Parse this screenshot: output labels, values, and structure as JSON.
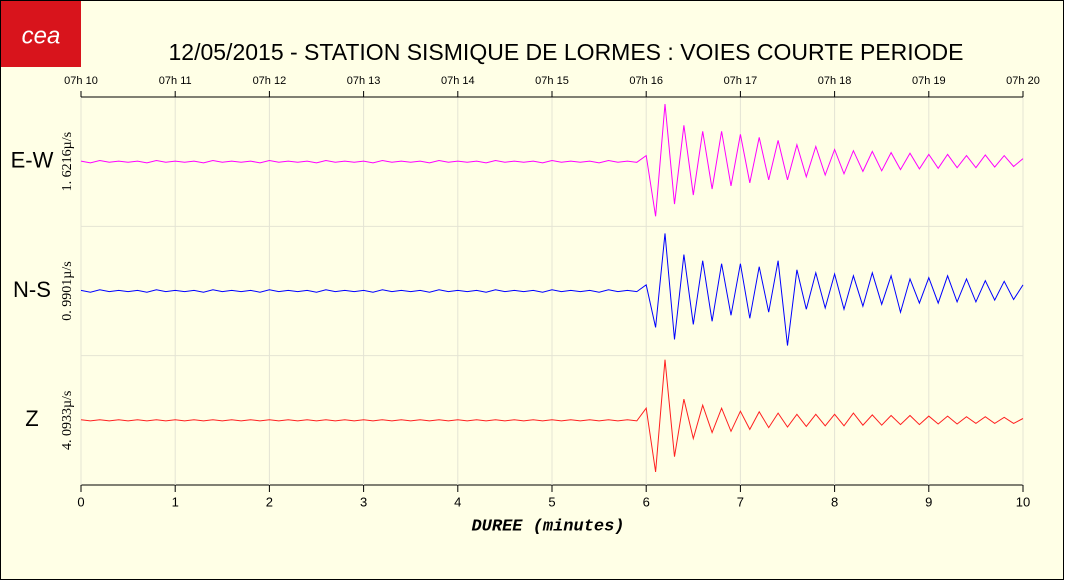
{
  "chart_data": {
    "type": "seismogram",
    "title": "12/05/2015  -  STATION SISMIQUE DE LORMES : VOIES COURTE PERIODE",
    "logo": "cea",
    "x_label": "DUREE (minutes)",
    "xlim": [
      0,
      10
    ],
    "xticks": [
      0,
      1,
      2,
      3,
      4,
      5,
      6,
      7,
      8,
      9,
      10
    ],
    "top_ticks": [
      {
        "value": 0,
        "label": "07h 10"
      },
      {
        "value": 1,
        "label": "07h 11"
      },
      {
        "value": 2,
        "label": "07h 12"
      },
      {
        "value": 3,
        "label": "07h 13"
      },
      {
        "value": 4,
        "label": "07h 14"
      },
      {
        "value": 5,
        "label": "07h 15"
      },
      {
        "value": 6,
        "label": "07h 16"
      },
      {
        "value": 7,
        "label": "07h 17"
      },
      {
        "value": 8,
        "label": "07h 18"
      },
      {
        "value": 9,
        "label": "07h 19"
      },
      {
        "value": 10,
        "label": "07h 20"
      }
    ],
    "grid": true,
    "ylim": [
      -1,
      1
    ],
    "x": [
      0,
      0.1,
      0.2,
      0.3,
      0.4,
      0.5,
      0.6,
      0.7,
      0.8,
      0.9,
      1,
      1.1,
      1.2,
      1.3,
      1.4,
      1.5,
      1.6,
      1.7,
      1.8,
      1.9,
      2,
      2.1,
      2.2,
      2.3,
      2.4,
      2.5,
      2.6,
      2.7,
      2.8,
      2.9,
      3,
      3.1,
      3.2,
      3.3,
      3.4,
      3.5,
      3.6,
      3.7,
      3.8,
      3.9,
      4,
      4.1,
      4.2,
      4.3,
      4.4,
      4.5,
      4.6,
      4.7,
      4.8,
      4.9,
      5,
      5.1,
      5.2,
      5.3,
      5.4,
      5.5,
      5.6,
      5.7,
      5.8,
      5.9,
      6,
      6.1,
      6.2,
      6.3,
      6.4,
      6.5,
      6.6,
      6.7,
      6.8,
      6.9,
      7,
      7.1,
      7.2,
      7.3,
      7.4,
      7.5,
      7.6,
      7.7,
      7.8,
      7.9,
      8,
      8.1,
      8.2,
      8.3,
      8.4,
      8.5,
      8.6,
      8.7,
      8.8,
      8.9,
      9,
      9.1,
      9.2,
      9.3,
      9.4,
      9.5,
      9.6,
      9.7,
      9.8,
      9.9,
      10
    ],
    "series": [
      {
        "name": "E-W",
        "scale_label": "1. 6216µ/s",
        "color": "#ff00ff",
        "values": [
          0.01,
          -0.02,
          0.02,
          -0.01,
          0.01,
          -0.01,
          0.01,
          -0.02,
          0.02,
          -0.01,
          0.01,
          -0.01,
          0.01,
          -0.02,
          0.02,
          -0.01,
          0.01,
          -0.01,
          0.01,
          -0.02,
          0.02,
          -0.01,
          0.01,
          -0.01,
          0.01,
          -0.02,
          0.02,
          -0.01,
          0.01,
          -0.01,
          0.01,
          -0.02,
          0.02,
          -0.01,
          0.01,
          -0.01,
          0.01,
          -0.02,
          0.02,
          -0.01,
          0.01,
          -0.01,
          0.01,
          -0.02,
          0.02,
          -0.01,
          0.01,
          -0.01,
          0.01,
          -0.02,
          0.02,
          -0.01,
          0.01,
          -0.01,
          0.01,
          -0.02,
          0.02,
          -0.01,
          0.01,
          -0.01,
          0.1,
          -0.9,
          0.95,
          -0.7,
          0.6,
          -0.55,
          0.5,
          -0.45,
          0.5,
          -0.4,
          0.45,
          -0.35,
          0.4,
          -0.3,
          0.35,
          -0.3,
          0.28,
          -0.25,
          0.25,
          -0.22,
          0.2,
          -0.2,
          0.18,
          -0.16,
          0.17,
          -0.15,
          0.15,
          -0.13,
          0.14,
          -0.12,
          0.12,
          -0.11,
          0.12,
          -0.1,
          0.1,
          -0.1,
          0.11,
          -0.09,
          0.1,
          -0.08,
          0.05
        ]
      },
      {
        "name": "N-S",
        "scale_label": "0. 9901µ/s",
        "color": "#0000ff",
        "values": [
          0.01,
          -0.02,
          0.02,
          -0.01,
          0.01,
          -0.01,
          0.01,
          -0.02,
          0.02,
          -0.01,
          0.01,
          -0.01,
          0.01,
          -0.02,
          0.02,
          -0.01,
          0.01,
          -0.01,
          0.01,
          -0.02,
          0.02,
          -0.01,
          0.01,
          -0.01,
          0.01,
          -0.02,
          0.02,
          -0.01,
          0.01,
          -0.01,
          0.01,
          -0.02,
          0.02,
          -0.01,
          0.01,
          -0.01,
          0.01,
          -0.02,
          0.02,
          -0.01,
          0.01,
          -0.01,
          0.01,
          -0.02,
          0.02,
          -0.01,
          0.01,
          -0.01,
          0.01,
          -0.02,
          0.02,
          -0.01,
          0.01,
          -0.01,
          0.01,
          -0.02,
          0.02,
          -0.01,
          0.01,
          -0.01,
          0.1,
          -0.6,
          0.95,
          -0.8,
          0.6,
          -0.55,
          0.5,
          -0.5,
          0.45,
          -0.4,
          0.45,
          -0.45,
          0.4,
          -0.35,
          0.5,
          -0.9,
          0.35,
          -0.3,
          0.3,
          -0.28,
          0.28,
          -0.3,
          0.25,
          -0.25,
          0.3,
          -0.22,
          0.25,
          -0.35,
          0.2,
          -0.2,
          0.22,
          -0.2,
          0.25,
          -0.18,
          0.2,
          -0.18,
          0.17,
          -0.15,
          0.16,
          -0.14,
          0.1
        ]
      },
      {
        "name": "Z",
        "scale_label": "4. 0933µ/s",
        "color": "#ff2020",
        "values": [
          0.01,
          -0.01,
          0.01,
          -0.01,
          0.01,
          -0.01,
          0.01,
          -0.01,
          0.01,
          -0.01,
          0.01,
          -0.01,
          0.01,
          -0.01,
          0.01,
          -0.01,
          0.01,
          -0.01,
          0.01,
          -0.01,
          0.01,
          -0.01,
          0.01,
          -0.01,
          0.01,
          -0.01,
          0.01,
          -0.01,
          0.01,
          -0.01,
          0.01,
          -0.01,
          0.01,
          -0.01,
          0.01,
          -0.01,
          0.01,
          -0.01,
          0.01,
          -0.01,
          0.01,
          -0.01,
          0.01,
          -0.01,
          0.01,
          -0.01,
          0.01,
          -0.01,
          0.01,
          -0.01,
          0.01,
          -0.01,
          0.01,
          -0.01,
          0.01,
          -0.01,
          0.01,
          -0.01,
          0.01,
          -0.01,
          0.2,
          -0.85,
          1,
          -0.6,
          0.35,
          -0.3,
          0.25,
          -0.2,
          0.2,
          -0.18,
          0.15,
          -0.15,
          0.14,
          -0.12,
          0.12,
          -0.11,
          0.1,
          -0.1,
          0.1,
          -0.09,
          0.1,
          -0.09,
          0.12,
          -0.08,
          0.09,
          -0.08,
          0.08,
          -0.07,
          0.08,
          -0.07,
          0.07,
          -0.06,
          0.07,
          -0.06,
          0.06,
          -0.05,
          0.06,
          -0.05,
          0.05,
          -0.05,
          0.03
        ]
      }
    ]
  }
}
